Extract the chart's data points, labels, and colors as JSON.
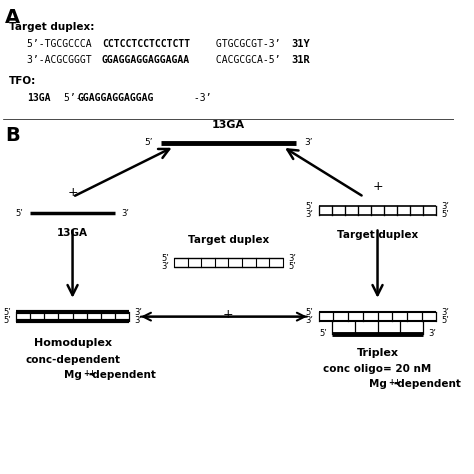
{
  "title_A": "A",
  "title_B": "B",
  "panel_A": {
    "line1_label": "Target duplex:",
    "line2": "5’-TGCGCCCA ",
    "line2_bold": "CCTCCTCCTCCTCTT",
    "line2_rest": " GTGCGCGT-3’  ",
    "line2_end": "31Y",
    "line3": "3’-ACGCGGGT ",
    "line3_bold": "GGAGGAGGAGGAGAA",
    "line3_rest": " CACGCGCA-5’  ",
    "line3_end": "31R",
    "tfo_label": "TFO:",
    "tfo_name": "13GA",
    "tfo_seq_pre": "5’- ",
    "tfo_seq_bold": "GGAGGAGGAGGAG",
    "tfo_seq_post": " -3’"
  },
  "background_color": "#ffffff",
  "text_color": "#000000"
}
